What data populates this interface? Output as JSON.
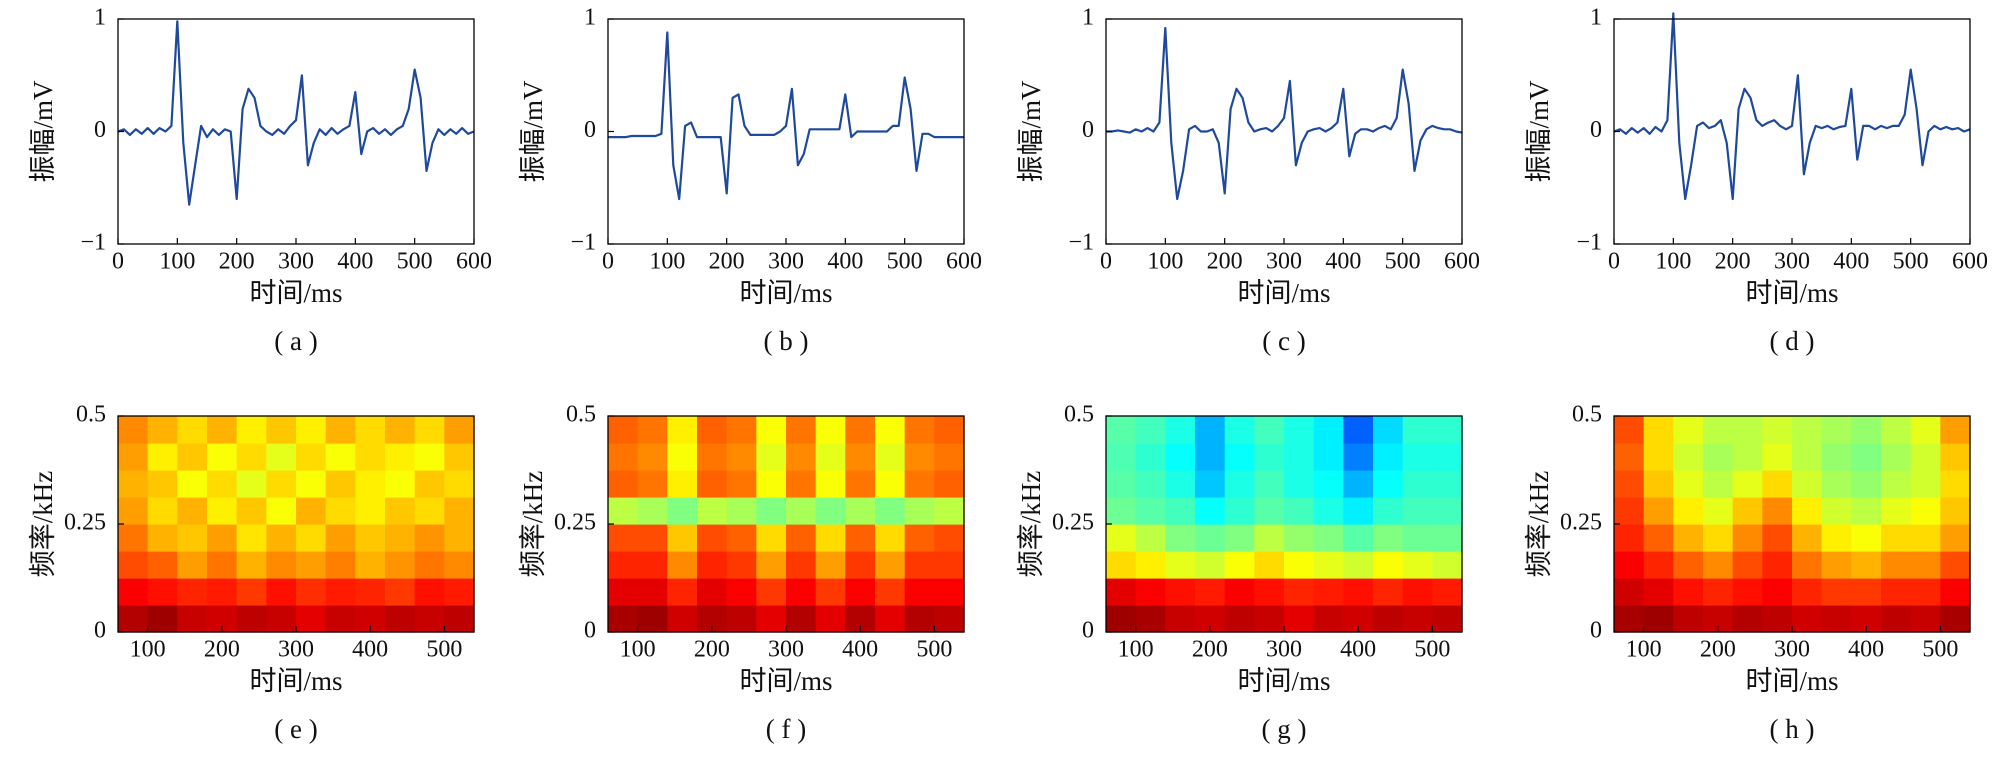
{
  "chart_data": [
    {
      "type": "line",
      "xlabel": "时间/ms",
      "ylabel": "振幅/mV",
      "caption": "( a )",
      "color": "#1f4a9c",
      "xlim": [
        0,
        600
      ],
      "ylim": [
        -1,
        1
      ],
      "xticks": [
        0,
        100,
        200,
        300,
        400,
        500,
        600
      ],
      "yticks": [
        {
          "value": -1,
          "label": "−1"
        },
        0,
        1
      ],
      "x": [
        0,
        10,
        20,
        30,
        40,
        50,
        60,
        70,
        80,
        90,
        100,
        110,
        120,
        130,
        140,
        150,
        160,
        170,
        180,
        190,
        200,
        210,
        220,
        230,
        240,
        250,
        260,
        270,
        280,
        290,
        300,
        310,
        320,
        330,
        340,
        350,
        360,
        370,
        380,
        390,
        400,
        410,
        420,
        430,
        440,
        450,
        460,
        470,
        480,
        490,
        500,
        510,
        520,
        530,
        540,
        550,
        560,
        570,
        580,
        590,
        600
      ],
      "values": [
        0,
        0.02,
        -0.03,
        0.02,
        -0.02,
        0.03,
        -0.02,
        0.03,
        0,
        0.05,
        0.98,
        -0.1,
        -0.65,
        -0.3,
        0.05,
        -0.05,
        0.02,
        -0.03,
        0.02,
        0,
        -0.6,
        0.2,
        0.38,
        0.3,
        0.05,
        0,
        -0.03,
        0.02,
        -0.02,
        0.05,
        0.1,
        0.5,
        -0.3,
        -0.1,
        0.02,
        -0.03,
        0.03,
        -0.02,
        0.02,
        0.05,
        0.35,
        -0.2,
        0,
        0.03,
        -0.02,
        0.02,
        -0.03,
        0.02,
        0.05,
        0.2,
        0.55,
        0.3,
        -0.35,
        -0.1,
        0.02,
        -0.03,
        0.02,
        -0.02,
        0.03,
        -0.02,
        0
      ]
    },
    {
      "type": "line",
      "xlabel": "时间/ms",
      "ylabel": "振幅/mV",
      "caption": "( b )",
      "color": "#1f4a9c",
      "xlim": [
        0,
        600
      ],
      "ylim": [
        -1,
        1
      ],
      "xticks": [
        0,
        100,
        200,
        300,
        400,
        500,
        600
      ],
      "yticks": [
        {
          "value": -1,
          "label": "−1"
        },
        0,
        1
      ],
      "x": [
        0,
        10,
        20,
        30,
        40,
        50,
        60,
        70,
        80,
        90,
        100,
        110,
        120,
        130,
        140,
        150,
        160,
        170,
        180,
        190,
        200,
        210,
        220,
        230,
        240,
        250,
        260,
        270,
        280,
        290,
        300,
        310,
        320,
        330,
        340,
        350,
        360,
        370,
        380,
        390,
        400,
        410,
        420,
        430,
        440,
        450,
        460,
        470,
        480,
        490,
        500,
        510,
        520,
        530,
        540,
        550,
        560,
        570,
        580,
        590,
        600
      ],
      "values": [
        -0.05,
        -0.05,
        -0.05,
        -0.05,
        -0.04,
        -0.04,
        -0.04,
        -0.04,
        -0.04,
        -0.02,
        0.88,
        -0.3,
        -0.6,
        0.05,
        0.08,
        -0.05,
        -0.05,
        -0.05,
        -0.05,
        -0.05,
        -0.55,
        0.3,
        0.33,
        0.05,
        -0.03,
        -0.03,
        -0.03,
        -0.03,
        -0.03,
        0,
        0.05,
        0.38,
        -0.3,
        -0.2,
        0.02,
        0.02,
        0.02,
        0.02,
        0.02,
        0.02,
        0.33,
        -0.05,
        0,
        0,
        0,
        0,
        0,
        0,
        0.05,
        0.05,
        0.48,
        0.2,
        -0.35,
        -0.02,
        -0.02,
        -0.05,
        -0.05,
        -0.05,
        -0.05,
        -0.05,
        -0.05
      ]
    },
    {
      "type": "line",
      "xlabel": "时间/ms",
      "ylabel": "振幅/mV",
      "caption": "( c )",
      "color": "#1f4a9c",
      "xlim": [
        0,
        600
      ],
      "ylim": [
        -1,
        1
      ],
      "xticks": [
        0,
        100,
        200,
        300,
        400,
        500,
        600
      ],
      "yticks": [
        {
          "value": -1,
          "label": "−1"
        },
        0,
        1
      ],
      "x": [
        0,
        10,
        20,
        30,
        40,
        50,
        60,
        70,
        80,
        90,
        100,
        110,
        120,
        130,
        140,
        150,
        160,
        170,
        180,
        190,
        200,
        210,
        220,
        230,
        240,
        250,
        260,
        270,
        280,
        290,
        300,
        310,
        320,
        330,
        340,
        350,
        360,
        370,
        380,
        390,
        400,
        410,
        420,
        430,
        440,
        450,
        460,
        470,
        480,
        490,
        500,
        510,
        520,
        530,
        540,
        550,
        560,
        570,
        580,
        590,
        600
      ],
      "values": [
        0,
        0,
        0.01,
        0,
        -0.01,
        0.02,
        0,
        0.03,
        0,
        0.08,
        0.92,
        -0.1,
        -0.6,
        -0.35,
        0.02,
        0.05,
        0,
        0,
        0.02,
        -0.1,
        -0.55,
        0.2,
        0.38,
        0.3,
        0.08,
        0,
        0.02,
        0.03,
        0,
        0.05,
        0.12,
        0.45,
        -0.3,
        -0.1,
        0,
        0.02,
        0.03,
        0,
        0.03,
        0.08,
        0.38,
        -0.22,
        -0.02,
        0.02,
        0.02,
        0,
        0.03,
        0.05,
        0.02,
        0.12,
        0.55,
        0.25,
        -0.35,
        -0.08,
        0.02,
        0.05,
        0.03,
        0.02,
        0.02,
        0,
        -0.01
      ]
    },
    {
      "type": "line",
      "xlabel": "时间/ms",
      "ylabel": "振幅/mV",
      "caption": "( d )",
      "color": "#1f4a9c",
      "xlim": [
        0,
        600
      ],
      "ylim": [
        -1,
        1
      ],
      "xticks": [
        0,
        100,
        200,
        300,
        400,
        500,
        600
      ],
      "yticks": [
        {
          "value": -1,
          "label": "−1"
        },
        0,
        1
      ],
      "x": [
        0,
        10,
        20,
        30,
        40,
        50,
        60,
        70,
        80,
        90,
        100,
        110,
        120,
        130,
        140,
        150,
        160,
        170,
        180,
        190,
        200,
        210,
        220,
        230,
        240,
        250,
        260,
        270,
        280,
        290,
        300,
        310,
        320,
        330,
        340,
        350,
        360,
        370,
        380,
        390,
        400,
        410,
        420,
        430,
        440,
        450,
        460,
        470,
        480,
        490,
        500,
        510,
        520,
        530,
        540,
        550,
        560,
        570,
        580,
        590,
        600
      ],
      "values": [
        0,
        0.02,
        -0.02,
        0.03,
        -0.01,
        0.03,
        -0.02,
        0.04,
        0,
        0.1,
        1.05,
        -0.1,
        -0.6,
        -0.3,
        0.05,
        0.08,
        0.03,
        0.05,
        0.1,
        -0.1,
        -0.6,
        0.2,
        0.38,
        0.3,
        0.1,
        0.05,
        0.08,
        0.1,
        0.05,
        0.02,
        0.05,
        0.5,
        -0.38,
        -0.1,
        0.05,
        0.03,
        0.05,
        0.02,
        0.04,
        0.05,
        0.38,
        -0.25,
        0.05,
        0.05,
        0.02,
        0.05,
        0.03,
        0.05,
        0.05,
        0.15,
        0.55,
        0.2,
        -0.3,
        0,
        0.05,
        0.02,
        0.04,
        0.02,
        0.03,
        0,
        0.02
      ]
    },
    {
      "type": "heatmap",
      "xlabel": "时间/ms",
      "ylabel": "频率/kHz",
      "caption": "( e )",
      "colormap": "jet",
      "zlim": [
        0,
        1
      ],
      "xlim": [
        60,
        540
      ],
      "ylim": [
        0,
        0.5
      ],
      "xticks": [
        100,
        200,
        300,
        400,
        500
      ],
      "yticks": [
        0,
        0.25,
        0.5
      ],
      "values": [
        [
          0.95,
          0.97,
          0.93,
          0.92,
          0.94,
          0.93,
          0.9,
          0.93,
          0.92,
          0.94,
          0.93,
          0.94
        ],
        [
          0.88,
          0.86,
          0.84,
          0.85,
          0.82,
          0.86,
          0.83,
          0.85,
          0.84,
          0.82,
          0.86,
          0.85
        ],
        [
          0.8,
          0.78,
          0.72,
          0.76,
          0.7,
          0.74,
          0.72,
          0.75,
          0.7,
          0.73,
          0.76,
          0.74
        ],
        [
          0.76,
          0.7,
          0.68,
          0.72,
          0.65,
          0.7,
          0.66,
          0.72,
          0.68,
          0.7,
          0.73,
          0.7
        ],
        [
          0.72,
          0.66,
          0.7,
          0.64,
          0.68,
          0.62,
          0.7,
          0.66,
          0.64,
          0.68,
          0.66,
          0.7
        ],
        [
          0.7,
          0.68,
          0.62,
          0.66,
          0.6,
          0.66,
          0.62,
          0.68,
          0.64,
          0.62,
          0.68,
          0.66
        ],
        [
          0.72,
          0.64,
          0.68,
          0.62,
          0.66,
          0.6,
          0.66,
          0.62,
          0.66,
          0.64,
          0.62,
          0.68
        ],
        [
          0.74,
          0.7,
          0.66,
          0.7,
          0.64,
          0.68,
          0.64,
          0.7,
          0.66,
          0.7,
          0.66,
          0.72
        ]
      ]
    },
    {
      "type": "heatmap",
      "xlabel": "时间/ms",
      "ylabel": "频率/kHz",
      "caption": "( f )",
      "colormap": "jet",
      "zlim": [
        0,
        1
      ],
      "xlim": [
        60,
        540
      ],
      "ylim": [
        0,
        0.5
      ],
      "xticks": [
        100,
        200,
        300,
        400,
        500
      ],
      "yticks": [
        0,
        0.25,
        0.5
      ],
      "values": [
        [
          0.96,
          0.97,
          0.92,
          0.95,
          0.94,
          0.9,
          0.95,
          0.9,
          0.95,
          0.9,
          0.95,
          0.94
        ],
        [
          0.9,
          0.9,
          0.84,
          0.9,
          0.88,
          0.82,
          0.88,
          0.82,
          0.88,
          0.82,
          0.88,
          0.88
        ],
        [
          0.84,
          0.84,
          0.74,
          0.84,
          0.82,
          0.72,
          0.82,
          0.72,
          0.82,
          0.72,
          0.82,
          0.82
        ],
        [
          0.8,
          0.8,
          0.68,
          0.8,
          0.78,
          0.66,
          0.78,
          0.66,
          0.78,
          0.66,
          0.78,
          0.8
        ],
        [
          0.56,
          0.54,
          0.5,
          0.56,
          0.54,
          0.5,
          0.54,
          0.5,
          0.54,
          0.5,
          0.54,
          0.56
        ],
        [
          0.78,
          0.76,
          0.64,
          0.78,
          0.76,
          0.62,
          0.76,
          0.62,
          0.76,
          0.62,
          0.76,
          0.78
        ],
        [
          0.76,
          0.74,
          0.62,
          0.76,
          0.74,
          0.6,
          0.74,
          0.6,
          0.74,
          0.6,
          0.74,
          0.76
        ],
        [
          0.78,
          0.76,
          0.64,
          0.78,
          0.76,
          0.62,
          0.76,
          0.62,
          0.76,
          0.62,
          0.76,
          0.78
        ]
      ]
    },
    {
      "type": "heatmap",
      "xlabel": "时间/ms",
      "ylabel": "频率/kHz",
      "caption": "( g )",
      "colormap": "jet",
      "zlim": [
        0,
        1
      ],
      "xlim": [
        60,
        540
      ],
      "ylim": [
        0,
        0.5
      ],
      "xticks": [
        100,
        200,
        300,
        400,
        500
      ],
      "yticks": [
        0,
        0.25,
        0.5
      ],
      "values": [
        [
          0.97,
          0.96,
          0.93,
          0.92,
          0.94,
          0.93,
          0.9,
          0.93,
          0.92,
          0.94,
          0.93,
          0.94
        ],
        [
          0.9,
          0.88,
          0.86,
          0.85,
          0.88,
          0.86,
          0.84,
          0.85,
          0.86,
          0.84,
          0.86,
          0.85
        ],
        [
          0.66,
          0.64,
          0.6,
          0.58,
          0.62,
          0.66,
          0.62,
          0.6,
          0.58,
          0.62,
          0.6,
          0.58
        ],
        [
          0.6,
          0.56,
          0.5,
          0.48,
          0.5,
          0.56,
          0.52,
          0.5,
          0.46,
          0.5,
          0.48,
          0.48
        ],
        [
          0.48,
          0.46,
          0.44,
          0.38,
          0.42,
          0.46,
          0.44,
          0.4,
          0.36,
          0.42,
          0.44,
          0.44
        ],
        [
          0.46,
          0.44,
          0.4,
          0.32,
          0.4,
          0.44,
          0.4,
          0.38,
          0.3,
          0.38,
          0.42,
          0.42
        ],
        [
          0.45,
          0.42,
          0.38,
          0.3,
          0.38,
          0.42,
          0.4,
          0.36,
          0.25,
          0.36,
          0.4,
          0.4
        ],
        [
          0.46,
          0.44,
          0.4,
          0.3,
          0.4,
          0.44,
          0.4,
          0.36,
          0.22,
          0.34,
          0.42,
          0.42
        ]
      ]
    },
    {
      "type": "heatmap",
      "xlabel": "时间/ms",
      "ylabel": "频率/kHz",
      "caption": "( h )",
      "colormap": "jet",
      "zlim": [
        0,
        1
      ],
      "xlim": [
        60,
        540
      ],
      "ylim": [
        0,
        0.5
      ],
      "xticks": [
        100,
        200,
        300,
        400,
        500
      ],
      "yticks": [
        0,
        0.25,
        0.5
      ],
      "values": [
        [
          0.96,
          0.97,
          0.94,
          0.93,
          0.95,
          0.94,
          0.92,
          0.93,
          0.92,
          0.94,
          0.93,
          0.96
        ],
        [
          0.92,
          0.9,
          0.86,
          0.84,
          0.86,
          0.88,
          0.84,
          0.82,
          0.82,
          0.84,
          0.84,
          0.88
        ],
        [
          0.88,
          0.84,
          0.78,
          0.74,
          0.8,
          0.84,
          0.76,
          0.72,
          0.7,
          0.74,
          0.74,
          0.8
        ],
        [
          0.84,
          0.78,
          0.7,
          0.66,
          0.74,
          0.8,
          0.7,
          0.64,
          0.62,
          0.66,
          0.66,
          0.72
        ],
        [
          0.82,
          0.72,
          0.64,
          0.6,
          0.68,
          0.74,
          0.64,
          0.58,
          0.56,
          0.6,
          0.62,
          0.68
        ],
        [
          0.8,
          0.68,
          0.6,
          0.56,
          0.6,
          0.66,
          0.58,
          0.54,
          0.52,
          0.56,
          0.58,
          0.66
        ],
        [
          0.78,
          0.66,
          0.58,
          0.54,
          0.56,
          0.6,
          0.56,
          0.52,
          0.5,
          0.54,
          0.58,
          0.68
        ],
        [
          0.8,
          0.66,
          0.6,
          0.56,
          0.56,
          0.58,
          0.56,
          0.54,
          0.52,
          0.56,
          0.6,
          0.72
        ]
      ]
    }
  ]
}
